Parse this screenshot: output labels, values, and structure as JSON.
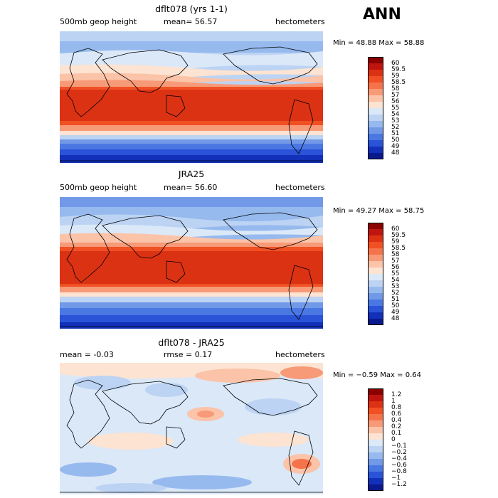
{
  "season": "ANN",
  "panels": [
    {
      "title": "dflt078 (yrs 1-1)",
      "left_text": "500mb geop height",
      "center_text": "mean=  56.57",
      "right_text": "hectometers",
      "min_max": "Min =  48.88 Max =  58.88",
      "colorbar_labels": [
        "60",
        "59.5",
        "59",
        "58.5",
        "58",
        "57",
        "56",
        "55",
        "54",
        "53",
        "52",
        "51",
        "50",
        "49",
        "48"
      ]
    },
    {
      "title": "JRA25",
      "left_text": "500mb geop height",
      "center_text": "mean=  56.60",
      "right_text": "hectometers",
      "min_max": "Min =  49.27 Max =  58.75",
      "colorbar_labels": [
        "60",
        "59.5",
        "59",
        "58.5",
        "58",
        "57",
        "56",
        "55",
        "54",
        "53",
        "52",
        "51",
        "50",
        "49",
        "48"
      ]
    },
    {
      "title": "dflt078 - JRA25",
      "left_text": "mean =  -0.03",
      "center_text": "rmse =   0.17",
      "right_text": "hectometers",
      "min_max": "Min = −0.59 Max =   0.64",
      "colorbar_labels": [
        "1.2",
        "1",
        "0.8",
        "0.6",
        "0.4",
        "0.2",
        "0.1",
        "0",
        "−0.1",
        "−0.2",
        "−0.4",
        "−0.6",
        "−0.8",
        "−1",
        "−1.2"
      ]
    }
  ],
  "colors": {
    "full_scale": [
      "#8b0000",
      "#c0140f",
      "#dc3214",
      "#f05023",
      "#f4734a",
      "#f79a78",
      "#fbc3a8",
      "#fde3d2",
      "#dbe8f8",
      "#bcd3f3",
      "#96baee",
      "#7199e8",
      "#4a78e3",
      "#2a53d8",
      "#1230b8",
      "#0a1a8c"
    ],
    "diff_scale": [
      "#8b0000",
      "#c0140f",
      "#dc3214",
      "#f05023",
      "#f4734a",
      "#f79a78",
      "#fbc3a8",
      "#fde3d2",
      "#dbe8f8",
      "#bcd3f3",
      "#96baee",
      "#7199e8",
      "#4a78e3",
      "#2a53d8",
      "#1230b8",
      "#0a1a8c"
    ]
  }
}
